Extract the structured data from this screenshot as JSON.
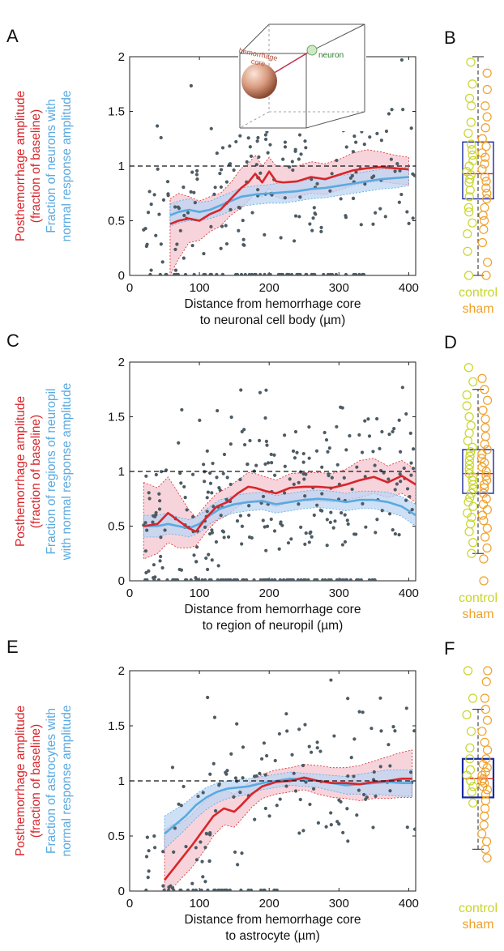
{
  "colors": {
    "red": "#d7262b",
    "blue": "#5aa9e0",
    "red_band": "#f4c6cf",
    "blue_band": "#bcd6f3",
    "dots": "#4d5b63",
    "control": "#c8d62a",
    "sham": "#f0a12a",
    "box": "#1a2aa0",
    "median": "#d7262b"
  },
  "inset": {
    "core_label": "hemorrhage\ncore",
    "neuron_label": "neuron"
  },
  "panels": [
    {
      "letter": "A",
      "ylabel_red": [
        "Posthemorrhage amplitude",
        "(fraction of baseline)"
      ],
      "ylabel_blue": [
        "Fraction of neurons with",
        "normal response amplitude"
      ],
      "xlabel": [
        "Distance from hemorrhage core",
        "to neuronal cell body (µm)"
      ]
    },
    {
      "letter": "C",
      "ylabel_red": [
        "Posthemorrhage amplitude",
        "(fraction of baseline)"
      ],
      "ylabel_blue": [
        "Fraction of regions of neuropil",
        "with normal response amplitude"
      ],
      "xlabel": [
        "Distance from hemorrhage core",
        "to region of neuropil (µm)"
      ]
    },
    {
      "letter": "E",
      "ylabel_red": [
        "Posthemorrhage amplitude",
        "(fraction of baseline)"
      ],
      "ylabel_blue": [
        "Fraction of astrocytes with",
        "normal response amplitude"
      ],
      "xlabel": [
        "Distance from hemorrhage core",
        "to astrocyte (µm)"
      ]
    }
  ],
  "side_panels": [
    {
      "letter": "B",
      "control_label": "control",
      "sham_label": "sham"
    },
    {
      "letter": "D",
      "control_label": "control",
      "sham_label": "sham"
    },
    {
      "letter": "F",
      "control_label": "control",
      "sham_label": "sham"
    }
  ],
  "chart_data": [
    {
      "type": "scatter",
      "panel": "A",
      "xlim": [
        0,
        410
      ],
      "ylim": [
        0,
        2
      ],
      "xticks": [
        0,
        100,
        200,
        300,
        400
      ],
      "yticks": [
        0,
        0.5,
        1,
        1.5,
        2
      ],
      "yticklabels": [
        "0",
        "0.5",
        "1",
        "1.5",
        "2"
      ],
      "reference_line": 1,
      "red_line": {
        "x": [
          58,
          70,
          85,
          100,
          115,
          130,
          145,
          160,
          170,
          180,
          190,
          200,
          210,
          220,
          240,
          260,
          280,
          300,
          320,
          340,
          360,
          380,
          400
        ],
        "y": [
          0.47,
          0.5,
          0.52,
          0.5,
          0.56,
          0.6,
          0.7,
          0.8,
          0.85,
          0.93,
          0.85,
          0.95,
          0.86,
          0.85,
          0.86,
          0.9,
          0.88,
          0.92,
          0.96,
          0.98,
          0.99,
          0.98,
          0.97
        ],
        "lo": [
          0,
          0.15,
          0.3,
          0.32,
          0.4,
          0.45,
          0.55,
          0.62,
          0.68,
          0.75,
          0.72,
          0.8,
          0.72,
          0.7,
          0.72,
          0.75,
          0.74,
          0.78,
          0.82,
          0.85,
          0.86,
          0.84,
          0.83
        ],
        "hi": [
          0.7,
          0.75,
          0.72,
          0.68,
          0.72,
          0.75,
          0.85,
          0.98,
          1.02,
          1.1,
          1.0,
          1.08,
          1.0,
          1.0,
          1.0,
          1.04,
          1.02,
          1.06,
          1.12,
          1.15,
          1.13,
          1.1,
          1.08
        ]
      },
      "blue_line": {
        "x": [
          58,
          70,
          85,
          100,
          115,
          130,
          145,
          160,
          180,
          200,
          220,
          240,
          260,
          280,
          300,
          320,
          340,
          360,
          380,
          400
        ],
        "y": [
          0.55,
          0.58,
          0.6,
          0.58,
          0.6,
          0.64,
          0.68,
          0.72,
          0.74,
          0.75,
          0.76,
          0.77,
          0.79,
          0.8,
          0.82,
          0.84,
          0.86,
          0.88,
          0.89,
          0.9
        ],
        "lo": [
          0.45,
          0.48,
          0.5,
          0.5,
          0.52,
          0.55,
          0.59,
          0.63,
          0.65,
          0.66,
          0.66,
          0.68,
          0.7,
          0.71,
          0.73,
          0.75,
          0.77,
          0.79,
          0.8,
          0.82
        ],
        "hi": [
          0.65,
          0.68,
          0.7,
          0.67,
          0.68,
          0.72,
          0.76,
          0.8,
          0.82,
          0.83,
          0.85,
          0.86,
          0.88,
          0.89,
          0.91,
          0.93,
          0.95,
          0.97,
          0.98,
          0.99
        ]
      },
      "n_points": 190,
      "n_zero": 60,
      "side_box": {
        "q1": 0.7,
        "median": 0.93,
        "q3": 1.22,
        "whisker_lo": 0,
        "whisker_hi": 2.0,
        "control": [
          0,
          0.22,
          0.38,
          0.48,
          0.58,
          0.62,
          0.72,
          0.78,
          0.85,
          0.88,
          0.92,
          0.95,
          1.0,
          1.05,
          1.1,
          1.15,
          1.2,
          1.3,
          1.4,
          1.55,
          1.62,
          1.75,
          1.95
        ],
        "sham": [
          0,
          0.12,
          0.3,
          0.42,
          0.5,
          0.55,
          0.62,
          0.7,
          0.75,
          0.8,
          0.86,
          0.9,
          0.97,
          1.02,
          1.08,
          1.12,
          1.18,
          1.25,
          1.35,
          1.45,
          1.55,
          1.7,
          1.85
        ]
      }
    },
    {
      "type": "scatter",
      "panel": "C",
      "xlim": [
        0,
        410
      ],
      "ylim": [
        0,
        2
      ],
      "xticks": [
        0,
        100,
        200,
        300,
        400
      ],
      "yticks": [
        0,
        0.5,
        1,
        1.5,
        2
      ],
      "yticklabels": [
        "0",
        "0.5",
        "1",
        "1.5",
        "2"
      ],
      "reference_line": 1,
      "red_line": {
        "x": [
          20,
          40,
          55,
          70,
          85,
          95,
          110,
          125,
          140,
          155,
          170,
          180,
          195,
          210,
          230,
          250,
          270,
          290,
          310,
          330,
          350,
          370,
          390,
          410
        ],
        "y": [
          0.5,
          0.52,
          0.62,
          0.55,
          0.48,
          0.45,
          0.58,
          0.68,
          0.72,
          0.8,
          0.86,
          0.85,
          0.82,
          0.8,
          0.85,
          0.86,
          0.86,
          0.85,
          0.88,
          0.92,
          0.95,
          0.9,
          0.96,
          0.88
        ],
        "lo": [
          0.2,
          0.25,
          0.35,
          0.3,
          0.3,
          0.32,
          0.45,
          0.55,
          0.6,
          0.68,
          0.73,
          0.72,
          0.7,
          0.68,
          0.72,
          0.73,
          0.73,
          0.72,
          0.74,
          0.76,
          0.8,
          0.76,
          0.8,
          0.72
        ],
        "hi": [
          0.9,
          0.85,
          0.95,
          0.8,
          0.65,
          0.58,
          0.7,
          0.8,
          0.85,
          0.92,
          0.99,
          0.98,
          0.95,
          0.92,
          0.98,
          0.99,
          0.99,
          0.98,
          1.02,
          1.1,
          1.12,
          1.05,
          1.1,
          1.02
        ]
      },
      "blue_line": {
        "x": [
          20,
          40,
          55,
          70,
          85,
          100,
          115,
          130,
          150,
          170,
          190,
          210,
          230,
          250,
          270,
          290,
          310,
          330,
          350,
          370,
          390,
          410
        ],
        "y": [
          0.5,
          0.5,
          0.52,
          0.5,
          0.48,
          0.52,
          0.6,
          0.66,
          0.7,
          0.72,
          0.73,
          0.7,
          0.72,
          0.74,
          0.75,
          0.74,
          0.72,
          0.74,
          0.74,
          0.72,
          0.68,
          0.6
        ],
        "lo": [
          0.4,
          0.4,
          0.43,
          0.42,
          0.4,
          0.44,
          0.52,
          0.58,
          0.62,
          0.64,
          0.65,
          0.62,
          0.64,
          0.66,
          0.67,
          0.66,
          0.64,
          0.66,
          0.66,
          0.63,
          0.59,
          0.5
        ],
        "hi": [
          0.6,
          0.6,
          0.62,
          0.58,
          0.56,
          0.6,
          0.68,
          0.74,
          0.78,
          0.8,
          0.81,
          0.78,
          0.8,
          0.82,
          0.83,
          0.82,
          0.8,
          0.82,
          0.82,
          0.81,
          0.77,
          0.7
        ]
      },
      "n_points": 260,
      "n_zero": 90,
      "side_box": {
        "q1": 0.8,
        "median": 0.98,
        "q3": 1.2,
        "whisker_lo": 0.25,
        "whisker_hi": 1.75,
        "control": [
          0.25,
          0.35,
          0.45,
          0.52,
          0.58,
          0.62,
          0.68,
          0.72,
          0.76,
          0.8,
          0.84,
          0.88,
          0.92,
          0.95,
          0.98,
          1.02,
          1.06,
          1.1,
          1.14,
          1.18,
          1.22,
          1.28,
          1.35,
          1.42,
          1.5,
          1.6,
          1.7,
          1.82,
          1.95
        ],
        "sham": [
          0,
          0.2,
          0.3,
          0.4,
          0.48,
          0.55,
          0.6,
          0.65,
          0.7,
          0.75,
          0.8,
          0.85,
          0.88,
          0.92,
          0.96,
          1.0,
          1.04,
          1.08,
          1.12,
          1.16,
          1.2,
          1.25,
          1.32,
          1.4,
          1.48,
          1.56,
          1.65,
          1.75,
          1.85
        ]
      }
    },
    {
      "type": "scatter",
      "panel": "E",
      "xlim": [
        0,
        410
      ],
      "ylim": [
        0,
        2
      ],
      "xticks": [
        0,
        100,
        200,
        300,
        400
      ],
      "yticks": [
        0,
        0.5,
        1,
        1.5,
        2
      ],
      "yticklabels": [
        "0",
        "0.5",
        "1",
        "1.5",
        "2"
      ],
      "reference_line": 1,
      "red_line": {
        "x": [
          50,
          60,
          75,
          90,
          105,
          120,
          135,
          150,
          160,
          175,
          190,
          210,
          230,
          250,
          270,
          290,
          310,
          330,
          350,
          370,
          390,
          405
        ],
        "y": [
          0.1,
          0.18,
          0.3,
          0.42,
          0.55,
          0.68,
          0.75,
          0.72,
          0.78,
          0.88,
          0.95,
          0.99,
          1.0,
          1.03,
          1.0,
          0.98,
          0.98,
          0.97,
          0.99,
          1.0,
          1.02,
          1.02
        ],
        "lo": [
          0,
          0.02,
          0.12,
          0.22,
          0.35,
          0.5,
          0.6,
          0.58,
          0.65,
          0.76,
          0.84,
          0.88,
          0.9,
          0.92,
          0.88,
          0.85,
          0.84,
          0.82,
          0.84,
          0.84,
          0.85,
          0.85
        ],
        "hi": [
          0.55,
          0.6,
          0.62,
          0.7,
          0.8,
          0.88,
          0.92,
          0.88,
          0.93,
          1.0,
          1.06,
          1.1,
          1.12,
          1.15,
          1.14,
          1.12,
          1.12,
          1.14,
          1.18,
          1.22,
          1.26,
          1.28
        ]
      },
      "blue_line": {
        "x": [
          50,
          65,
          80,
          95,
          110,
          125,
          140,
          155,
          170,
          190,
          210,
          230,
          250,
          270,
          290,
          310,
          330,
          350,
          370,
          390,
          405
        ],
        "y": [
          0.52,
          0.6,
          0.68,
          0.78,
          0.85,
          0.9,
          0.93,
          0.94,
          0.95,
          0.98,
          1.0,
          1.02,
          1.01,
          1.0,
          0.98,
          0.96,
          0.97,
          0.98,
          0.99,
          0.98,
          0.98
        ],
        "lo": [
          0.38,
          0.47,
          0.56,
          0.66,
          0.74,
          0.8,
          0.84,
          0.86,
          0.88,
          0.92,
          0.94,
          0.96,
          0.95,
          0.94,
          0.91,
          0.88,
          0.88,
          0.88,
          0.87,
          0.86,
          0.86
        ],
        "hi": [
          0.68,
          0.74,
          0.8,
          0.88,
          0.94,
          0.98,
          1.0,
          1.01,
          1.02,
          1.04,
          1.06,
          1.08,
          1.07,
          1.06,
          1.05,
          1.04,
          1.06,
          1.08,
          1.1,
          1.1,
          1.1
        ]
      },
      "n_points": 150,
      "n_zero": 30,
      "side_box": {
        "q1": 0.85,
        "median": 1.02,
        "q3": 1.2,
        "whisker_lo": 0.38,
        "whisker_hi": 1.65,
        "control": [
          0.8,
          0.9,
          0.95,
          1.0,
          1.05,
          1.1,
          1.2,
          1.3,
          1.45,
          1.6,
          1.75,
          2.05
        ],
        "sham": [
          0.3,
          0.38,
          0.45,
          0.52,
          0.6,
          0.68,
          0.75,
          0.82,
          0.88,
          0.92,
          0.95,
          0.98,
          1.0,
          1.02,
          1.05,
          1.08,
          1.12,
          1.15,
          1.2,
          1.28,
          1.35,
          1.45,
          1.55,
          1.65,
          1.75,
          1.9,
          2.05
        ]
      }
    }
  ]
}
